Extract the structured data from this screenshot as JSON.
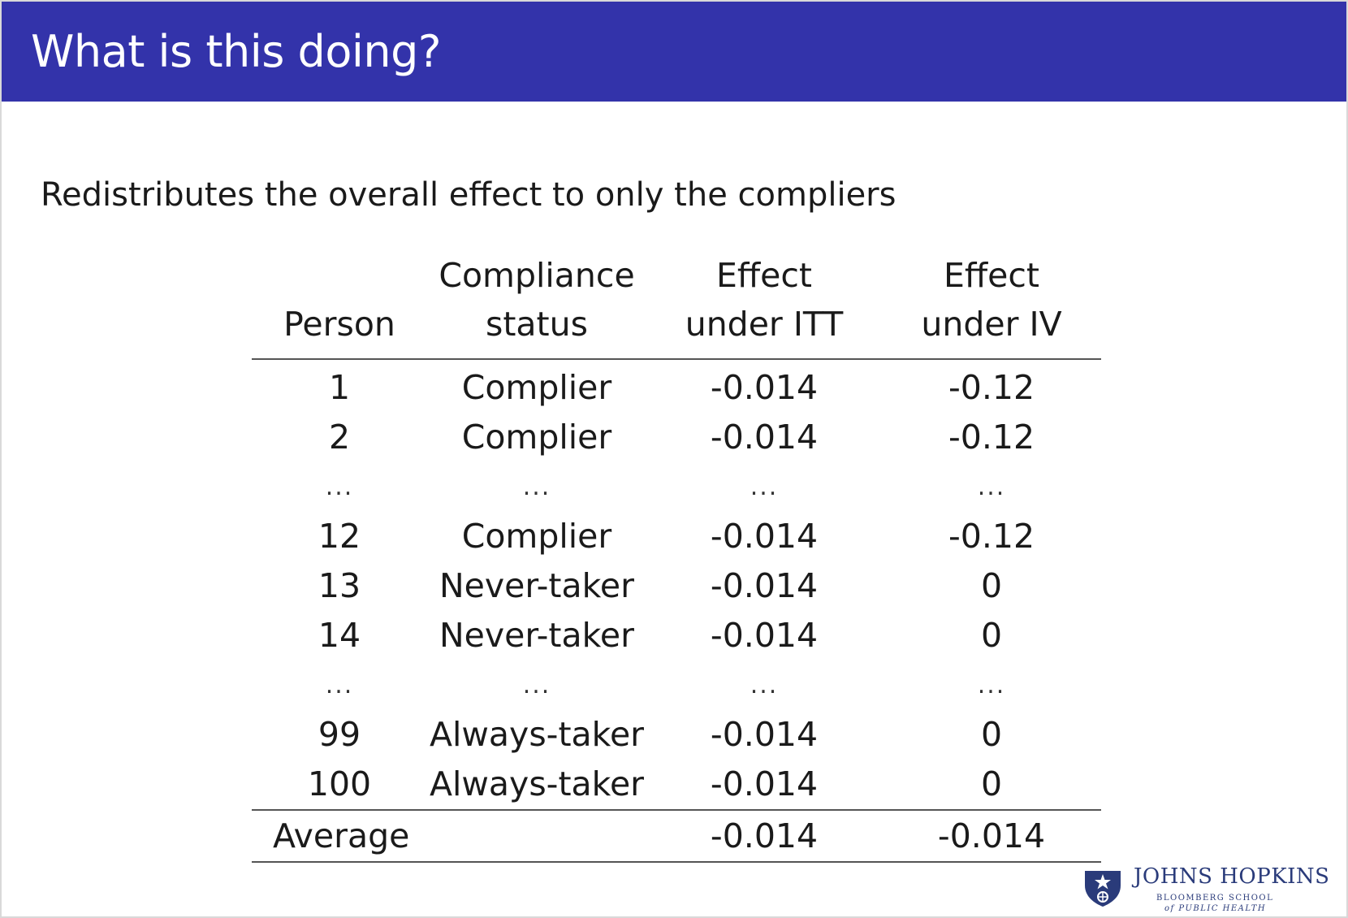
{
  "slide": {
    "title": "What is this doing?",
    "subtitle": "Redistributes the overall effect to only the compliers"
  },
  "table": {
    "headers": {
      "person": [
        "",
        "Person"
      ],
      "status": [
        "Compliance",
        "status"
      ],
      "itt": [
        "Effect",
        "under ITT"
      ],
      "iv": [
        "Effect",
        "under IV"
      ]
    },
    "rows": [
      {
        "person": "1",
        "status": "Complier",
        "itt": "-0.014",
        "iv": "-0.12"
      },
      {
        "person": "2",
        "status": "Complier",
        "itt": "-0.014",
        "iv": "-0.12"
      },
      {
        "person": "...",
        "status": "...",
        "itt": "...",
        "iv": "..."
      },
      {
        "person": "12",
        "status": "Complier",
        "itt": "-0.014",
        "iv": "-0.12"
      },
      {
        "person": "13",
        "status": "Never-taker",
        "itt": "-0.014",
        "iv": "0"
      },
      {
        "person": "14",
        "status": "Never-taker",
        "itt": "-0.014",
        "iv": "0"
      },
      {
        "person": "...",
        "status": "...",
        "itt": "...",
        "iv": "..."
      },
      {
        "person": "99",
        "status": "Always-taker",
        "itt": "-0.014",
        "iv": "0"
      },
      {
        "person": "100",
        "status": "Always-taker",
        "itt": "-0.014",
        "iv": "0"
      }
    ],
    "average": {
      "label": "Average",
      "itt": "-0.014",
      "iv": "-0.014"
    }
  },
  "logo": {
    "icon": "jhu-shield-icon",
    "name": "JOHNS HOPKINS",
    "sub1": "BLOOMBERG SCHOOL",
    "sub2": "of PUBLIC HEALTH"
  },
  "colors": {
    "title_bar": "#3333aa",
    "title_text": "#ffffff",
    "logo": "#2a3b7a"
  }
}
